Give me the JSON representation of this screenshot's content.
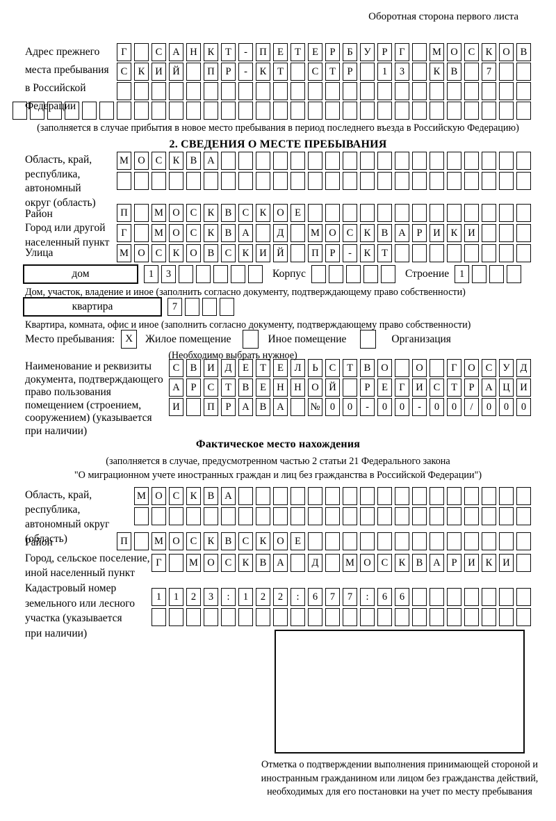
{
  "corner_note": "Оборотная сторона первого листа",
  "prev_address": {
    "label": "Адрес прежнего\nместа пребывания\nв Российской\nФедерации",
    "rows": [
      {
        "count": 24,
        "value": "Г САНКТ-ПЕТЕРБУРГ МОСКОВ"
      },
      {
        "count": 24,
        "value": "СКИЙ ПР-КТ СТР 13 КВ 7"
      },
      {
        "count": 24,
        "value": ""
      },
      {
        "count": 30,
        "value": ""
      }
    ],
    "note": "(заполняется в случае прибытия в новое место пребывания в период последнего въезда в Российскую Федерацию)"
  },
  "section2": {
    "title": "2. СВЕДЕНИЯ О МЕСТЕ ПРЕБЫВАНИЯ",
    "region": {
      "label": "Область, край,\nреспублика,\nавтономный\nокруг (область)",
      "rows": [
        {
          "count": 24,
          "value": "МОСКВА"
        },
        {
          "count": 24,
          "value": ""
        }
      ]
    },
    "district": {
      "label": "Район",
      "row": {
        "count": 24,
        "value": "П МОСКВСКОЕ"
      }
    },
    "city": {
      "label": "Город или другой\nнаселенный пункт",
      "row": {
        "count": 24,
        "value": "Г МОСКВА Д МОСКВАРИКИ"
      }
    },
    "street": {
      "label": "Улица",
      "row": {
        "count": 24,
        "value": "МОСКОВСКИЙ ПР-КТ"
      }
    },
    "house": {
      "type_label": "дом",
      "number": {
        "count": 7,
        "value": "13"
      },
      "korpus_label": "Корпус",
      "korpus": {
        "count": 5,
        "value": ""
      },
      "stroenie_label": "Строение",
      "stroenie": {
        "count": 4,
        "value": "1"
      },
      "note": "Дом, участок, владение и иное (заполнить согласно документу, подтверждающему право собственности)"
    },
    "apartment": {
      "type_label": "квартира",
      "number": {
        "count": 4,
        "value": "7"
      },
      "note": "Квартира, комната, офис и иное (заполнить согласно документу, подтверждающему право собственности)"
    },
    "stay_type": {
      "label": "Место пребывания:",
      "options": [
        {
          "checked": "X",
          "label": "Жилое помещение"
        },
        {
          "checked": "",
          "label": "Иное помещение"
        },
        {
          "checked": "",
          "label": "Организация"
        }
      ],
      "note": "(Необходимо выбрать нужное)"
    },
    "document": {
      "label": "Наименование и реквизиты\nдокумента, подтверждающего\nправо пользования\nпомещением (строением,\nсооружением) (указывается\nпри наличии)",
      "rows": [
        {
          "count": 21,
          "value": "СВИДЕТЕЛЬСТВО О ГОСУД"
        },
        {
          "count": 21,
          "value": "АРСТВЕННОЙ РЕГИСТРАЦИ"
        },
        {
          "count": 21,
          "value": "И ПРАВА №00-00-00/000"
        }
      ]
    }
  },
  "actual_location": {
    "title": "Фактическое место нахождения",
    "subtitle1": "(заполняется в случае, предусмотренном частью 2 статьи 21 Федерального закона",
    "subtitle2": "\"О миграционном учете иностранных граждан и лиц без гражданства в Российской Федерации\")",
    "region": {
      "label": "Область, край,\nреспублика,\nавтономный округ\n(область)",
      "rows": [
        {
          "count": 23,
          "value": "МОСКВА"
        },
        {
          "count": 23,
          "value": ""
        }
      ]
    },
    "district": {
      "label": "Район",
      "row": {
        "count": 24,
        "value": "П МОСКВСКОЕ"
      }
    },
    "city": {
      "label": "Город, сельское поселение,\nиной населенный пункт",
      "row": {
        "count": 22,
        "value": "Г МОСКВА Д МОСКВАРИКИ"
      }
    },
    "cadastre": {
      "label": "Кадастровый номер\nземельного или лесного\nучастка (указывается\nпри наличии)",
      "rows": [
        {
          "count": 22,
          "value": "1123:122:677:66"
        },
        {
          "count": 22,
          "value": ""
        }
      ]
    },
    "mark_note": "Отметка о подтверждении выполнения принимающей стороной и иностранным гражданином или лицом без гражданства действий, необходимых для его постановки на учет по месту пребывания"
  }
}
